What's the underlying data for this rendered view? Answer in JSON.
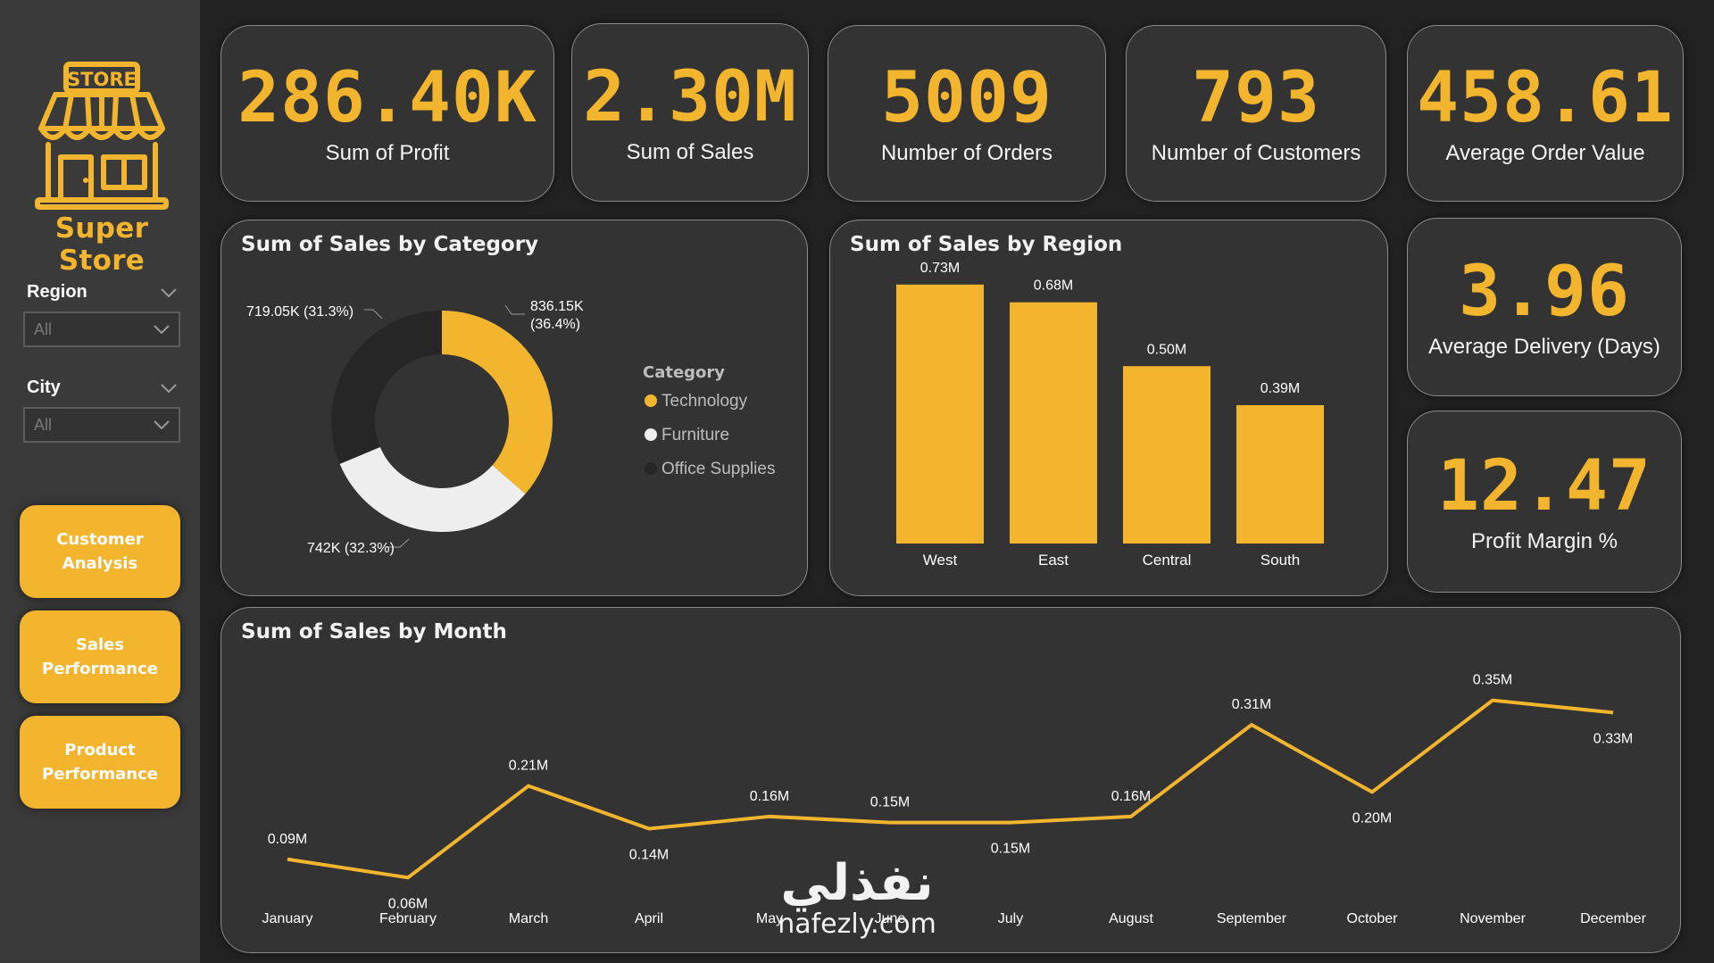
{
  "brand": {
    "name": "Super Store",
    "sign_text": "STORE"
  },
  "colors": {
    "accent": "#f3b52e",
    "card": "#333333",
    "sidebar": "#3a3a3a",
    "furniture": "#eeeeee",
    "office": "#262626"
  },
  "filters": [
    {
      "label": "Region",
      "value": "All"
    },
    {
      "label": "City",
      "value": "All"
    }
  ],
  "nav": [
    {
      "label": "Customer Analysis"
    },
    {
      "label": "Sales Performance"
    },
    {
      "label": "Product Performance"
    }
  ],
  "kpis": [
    {
      "value": "286.40K",
      "label": "Sum of Profit"
    },
    {
      "value": "2.30M",
      "label": "Sum of Sales"
    },
    {
      "value": "5009",
      "label": "Number of Orders"
    },
    {
      "value": "793",
      "label": "Number of Customers"
    },
    {
      "value": "458.61",
      "label": "Average Order Value"
    },
    {
      "value": "3.96",
      "label": "Average Delivery (Days)"
    },
    {
      "value": "12.47",
      "label": "Profit Margin %"
    }
  ],
  "chart_data": [
    {
      "type": "pie",
      "title": "Sum of Sales by Category",
      "legend_title": "Category",
      "legend_position": "right",
      "categories": [
        "Technology",
        "Furniture",
        "Office Supplies"
      ],
      "values": [
        836.15,
        742,
        719.05
      ],
      "data_labels": [
        "836.15K (36.4%)",
        "742K (32.3%)",
        "719.05K (31.3%)"
      ],
      "percent": [
        36.4,
        32.3,
        31.3
      ],
      "colors": [
        "#f3b52e",
        "#eeeeee",
        "#262626"
      ]
    },
    {
      "type": "bar",
      "title": "Sum of Sales by Region",
      "categories": [
        "West",
        "East",
        "Central",
        "South"
      ],
      "values": [
        0.73,
        0.68,
        0.5,
        0.39
      ],
      "data_labels": [
        "0.73M",
        "0.68M",
        "0.50M",
        "0.39M"
      ],
      "ylim": [
        0,
        0.8
      ],
      "grid": false
    },
    {
      "type": "line",
      "title": "Sum of Sales by Month",
      "categories": [
        "January",
        "February",
        "March",
        "April",
        "May",
        "June",
        "July",
        "August",
        "September",
        "October",
        "November",
        "December"
      ],
      "values": [
        0.09,
        0.06,
        0.21,
        0.14,
        0.16,
        0.15,
        0.15,
        0.16,
        0.31,
        0.2,
        0.35,
        0.33
      ],
      "data_labels": [
        "0.09M",
        "0.06M",
        "0.21M",
        "0.14M",
        "0.16M",
        "0.15M",
        "0.15M",
        "0.16M",
        "0.31M",
        "0.20M",
        "0.35M",
        "0.33M"
      ],
      "ylim": [
        0.04,
        0.37
      ],
      "grid": false
    }
  ],
  "watermark": {
    "arabic": "نفذلي",
    "latin": "nafezly.com"
  }
}
